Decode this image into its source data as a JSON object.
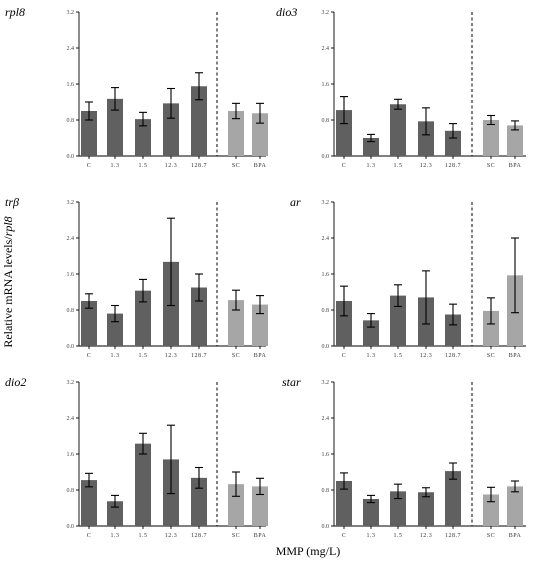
{
  "xlabel": "MMP (mg/L)",
  "ylabel_prefix": "Relative mRNA levels/",
  "ylabel_gene": "rpl8",
  "colors": {
    "treatment": "#606060",
    "control": "#a6a6a6"
  },
  "chart_data": [
    {
      "type": "bar",
      "title": "rpl8",
      "ylim": [
        0,
        3.2
      ],
      "yticks": [
        "0.0",
        "0.8",
        "1.6",
        "2.4",
        "3.2"
      ],
      "categories": [
        "C",
        "1.3",
        "1.5",
        "12.3",
        "128.7",
        "SC",
        "BPA"
      ],
      "values": [
        1.0,
        1.27,
        0.82,
        1.17,
        1.55,
        1.0,
        0.95
      ],
      "errors": [
        0.2,
        0.25,
        0.15,
        0.33,
        0.3,
        0.17,
        0.22
      ]
    },
    {
      "type": "bar",
      "title": "dio3",
      "ylim": [
        0,
        3.2
      ],
      "yticks": [
        "0.0",
        "0.8",
        "1.6",
        "2.4",
        "3.2"
      ],
      "categories": [
        "C",
        "1.3",
        "1.5",
        "12.3",
        "128.7",
        "SC",
        "BPA"
      ],
      "values": [
        1.02,
        0.4,
        1.15,
        0.77,
        0.56,
        0.8,
        0.68
      ],
      "errors": [
        0.3,
        0.08,
        0.11,
        0.3,
        0.16,
        0.1,
        0.1
      ]
    },
    {
      "type": "bar",
      "title": "trβ",
      "ylim": [
        0,
        3.2
      ],
      "yticks": [
        "0.0",
        "0.8",
        "1.6",
        "2.4",
        "3.2"
      ],
      "categories": [
        "C",
        "1.3",
        "1.5",
        "12.3",
        "128.7",
        "SC",
        "BPA"
      ],
      "values": [
        1.0,
        0.72,
        1.23,
        1.87,
        1.3,
        1.02,
        0.92
      ],
      "errors": [
        0.16,
        0.18,
        0.25,
        0.97,
        0.3,
        0.22,
        0.2
      ]
    },
    {
      "type": "bar",
      "title": "ar",
      "ylim": [
        0,
        3.2
      ],
      "yticks": [
        "0.0",
        "0.8",
        "1.6",
        "2.4",
        "3.2"
      ],
      "categories": [
        "C",
        "1.3",
        "1.5",
        "12.3",
        "128.7",
        "SC",
        "BPA"
      ],
      "values": [
        1.0,
        0.57,
        1.12,
        1.08,
        0.7,
        0.78,
        1.57
      ],
      "errors": [
        0.33,
        0.15,
        0.24,
        0.59,
        0.23,
        0.29,
        0.83
      ]
    },
    {
      "type": "bar",
      "title": "dio2",
      "ylim": [
        0,
        3.2
      ],
      "yticks": [
        "0.0",
        "0.8",
        "1.6",
        "2.4",
        "3.2"
      ],
      "categories": [
        "C",
        "1.3",
        "1.5",
        "12.3",
        "128.7",
        "SC",
        "BPA"
      ],
      "values": [
        1.02,
        0.55,
        1.83,
        1.48,
        1.07,
        0.93,
        0.88
      ],
      "errors": [
        0.15,
        0.13,
        0.23,
        0.76,
        0.23,
        0.27,
        0.18
      ]
    },
    {
      "type": "bar",
      "title": "star",
      "ylim": [
        0,
        3.2
      ],
      "yticks": [
        "0.0",
        "0.8",
        "1.6",
        "2.4",
        "3.2"
      ],
      "categories": [
        "C",
        "1.3",
        "1.5",
        "12.3",
        "128.7",
        "SC",
        "BPA"
      ],
      "values": [
        1.0,
        0.6,
        0.77,
        0.75,
        1.22,
        0.7,
        0.88
      ],
      "errors": [
        0.18,
        0.08,
        0.16,
        0.1,
        0.18,
        0.16,
        0.12
      ]
    }
  ]
}
